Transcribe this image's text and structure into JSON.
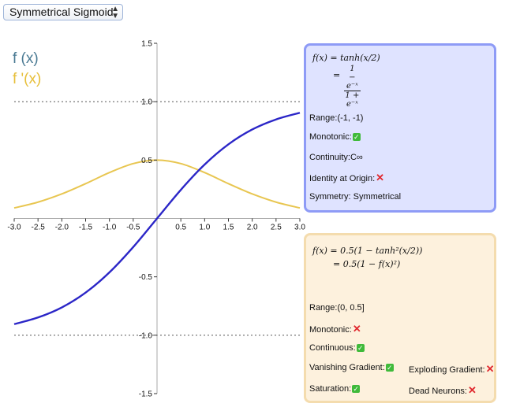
{
  "selector": {
    "value": "Symmetrical Sigmoid"
  },
  "legend": {
    "f": "f (x)",
    "df": "f '(x)"
  },
  "colors": {
    "f_curve": "#2b26c7",
    "df_curve": "#e8c651",
    "axis": "#aaaaaa"
  },
  "chart_data": {
    "type": "line",
    "title": "",
    "xlabel": "",
    "ylabel": "",
    "xlim": [
      -3.0,
      3.0
    ],
    "ylim": [
      -1.5,
      1.5
    ],
    "x_ticks": [
      "-3.0",
      "-2.5",
      "-2.0",
      "-1.5",
      "-1.0",
      "-0.5",
      "0.5",
      "1.0",
      "1.5",
      "2.0",
      "2.5",
      "3.0"
    ],
    "y_ticks": [
      "1.5",
      "1.0",
      "0.5",
      "-0.5",
      "-1.0",
      "-1.5"
    ],
    "reference_lines": [
      1.0,
      -1.0
    ],
    "x": [
      -3.0,
      -2.5,
      -2.0,
      -1.5,
      -1.0,
      -0.5,
      0.0,
      0.5,
      1.0,
      1.5,
      2.0,
      2.5,
      3.0
    ],
    "series": [
      {
        "name": "f (x)",
        "values": [
          -0.905,
          -0.848,
          -0.762,
          -0.635,
          -0.462,
          -0.245,
          0.0,
          0.245,
          0.462,
          0.635,
          0.762,
          0.848,
          0.905
        ]
      },
      {
        "name": "f '(x)",
        "values": [
          0.09,
          0.14,
          0.21,
          0.298,
          0.393,
          0.47,
          0.5,
          0.47,
          0.393,
          0.298,
          0.21,
          0.14,
          0.09
        ]
      }
    ]
  },
  "panel_f": {
    "formula_line1": "f(x) = tanh(x/2)",
    "formula_eq": "=",
    "formula_num": "1 − e⁻ˣ",
    "formula_den": "1 + e⁻ˣ",
    "range": "Range:(-1, -1)",
    "monotonic": "Monotonic:",
    "continuity": "Continuity:C∞",
    "identity": "Identity at Origin:",
    "symmetry": "Symmetry: Symmetrical"
  },
  "panel_df": {
    "formula_line1": "f(x) = 0.5(1 − tanh²(x/2))",
    "formula_line2": "= 0.5(1 − f(x)²)",
    "range": "Range:(0, 0.5]",
    "monotonic": "Monotonic:",
    "continuous": "Continuous:",
    "vanishing": "Vanishing Gradient:",
    "exploding": "Exploding Gradient:",
    "saturation": "Saturation:",
    "dead": "Dead Neurons:"
  }
}
